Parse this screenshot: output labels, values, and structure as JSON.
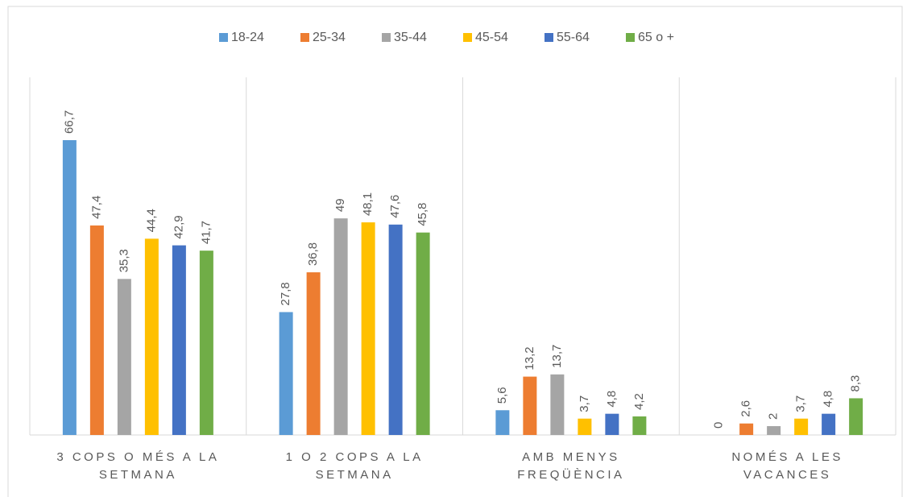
{
  "chart_data": {
    "type": "bar",
    "categories": [
      "3 COPS O MÉS A LA SETMANA",
      "1 O 2 COPS A LA SETMANA",
      "AMB MENYS FREQÜÈNCIA",
      "NOMÉS A LES VACANCES"
    ],
    "series": [
      {
        "name": "18-24",
        "color": "#5b9bd5",
        "values": [
          66.7,
          27.8,
          5.6,
          0
        ],
        "value_labels": [
          "66,7",
          "27,8",
          "5,6",
          "0"
        ]
      },
      {
        "name": "25-34",
        "color": "#ed7d31",
        "values": [
          47.4,
          36.8,
          13.2,
          2.6
        ],
        "value_labels": [
          "47,4",
          "36,8",
          "13,2",
          "2,6"
        ]
      },
      {
        "name": "35-44",
        "color": "#a5a5a5",
        "values": [
          35.3,
          49,
          13.7,
          2
        ],
        "value_labels": [
          "35,3",
          "49",
          "13,7",
          "2"
        ]
      },
      {
        "name": "45-54",
        "color": "#ffc000",
        "values": [
          44.4,
          48.1,
          3.7,
          3.7
        ],
        "value_labels": [
          "44,4",
          "48,1",
          "3,7",
          "3,7"
        ]
      },
      {
        "name": "55-64",
        "color": "#4472c4",
        "values": [
          42.9,
          47.6,
          4.8,
          4.8
        ],
        "value_labels": [
          "42,9",
          "47,6",
          "4,8",
          "4,8"
        ]
      },
      {
        "name": "65 o +",
        "color": "#70ad47",
        "values": [
          41.7,
          45.8,
          4.2,
          8.3
        ],
        "value_labels": [
          "41,7",
          "45,8",
          "4,2",
          "8,3"
        ]
      }
    ],
    "ylim": [
      0,
      80
    ],
    "legend": "top"
  }
}
